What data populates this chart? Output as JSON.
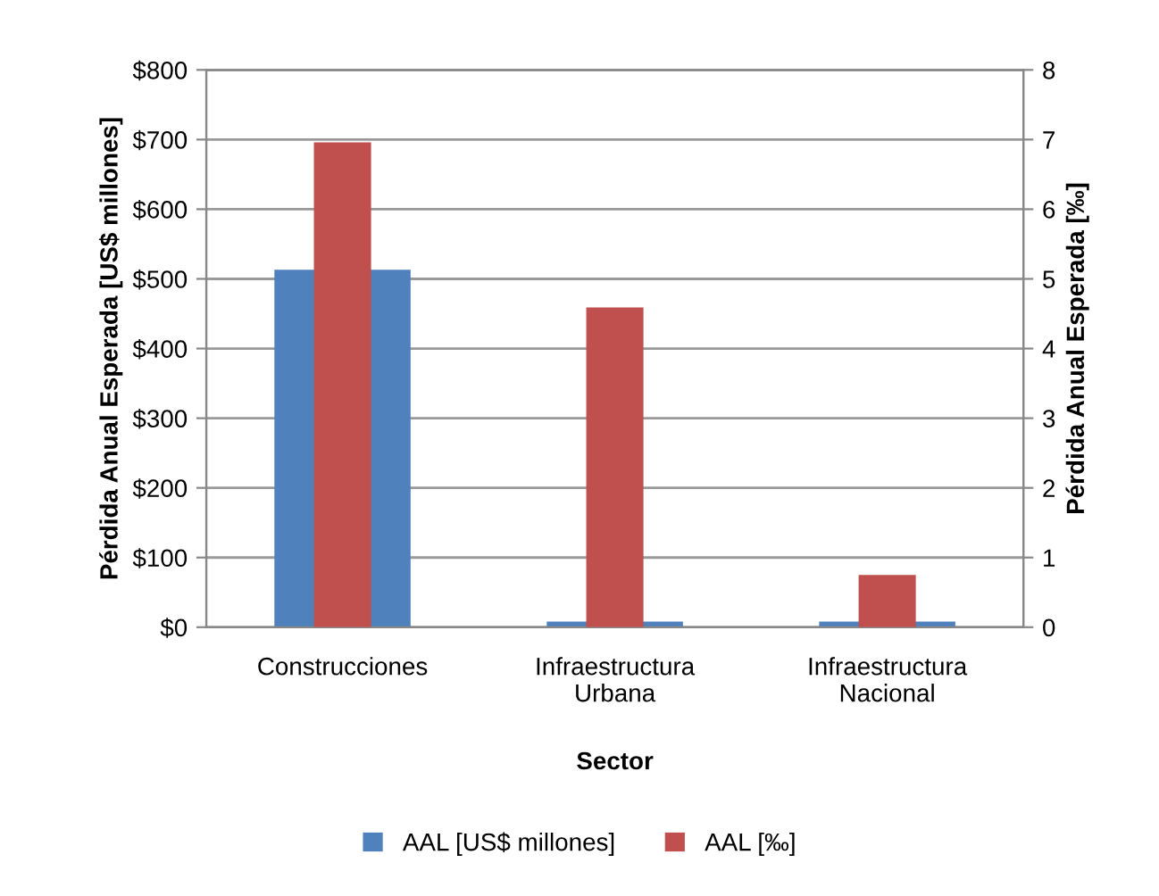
{
  "chart_data": {
    "type": "bar",
    "xlabel": "Sector",
    "ylabel": "Pérdida Anual Esperada [US$ millones]",
    "y2label": "Pérdida Anual Esperada [‰]",
    "categories": [
      "Construcciones",
      "Infraestructura\nUrbana",
      "Infraestructura\nNacional"
    ],
    "series": [
      {
        "name": "AAL [US$ millones]",
        "color": "#4f81bd",
        "values": [
          513,
          8,
          8
        ]
      },
      {
        "name": "AAL [‰]",
        "color": "#c0504d",
        "values": [
          6.96,
          4.59,
          0.75
        ],
        "axis": "y2"
      }
    ],
    "ylim": [
      0,
      800
    ],
    "yticks": [
      {
        "value": 0,
        "label": "$0"
      },
      {
        "value": 100,
        "label": "$100"
      },
      {
        "value": 200,
        "label": "$200"
      },
      {
        "value": 300,
        "label": "$300"
      },
      {
        "value": 400,
        "label": "$400"
      },
      {
        "value": 500,
        "label": "$500"
      },
      {
        "value": 600,
        "label": "$600"
      },
      {
        "value": 700,
        "label": "$700"
      },
      {
        "value": 800,
        "label": "$800"
      }
    ],
    "y2lim": [
      0,
      8
    ],
    "y2ticks": [
      0,
      1,
      2,
      3,
      4,
      5,
      6,
      7,
      8
    ],
    "grid": "y",
    "legend": "bottom"
  }
}
